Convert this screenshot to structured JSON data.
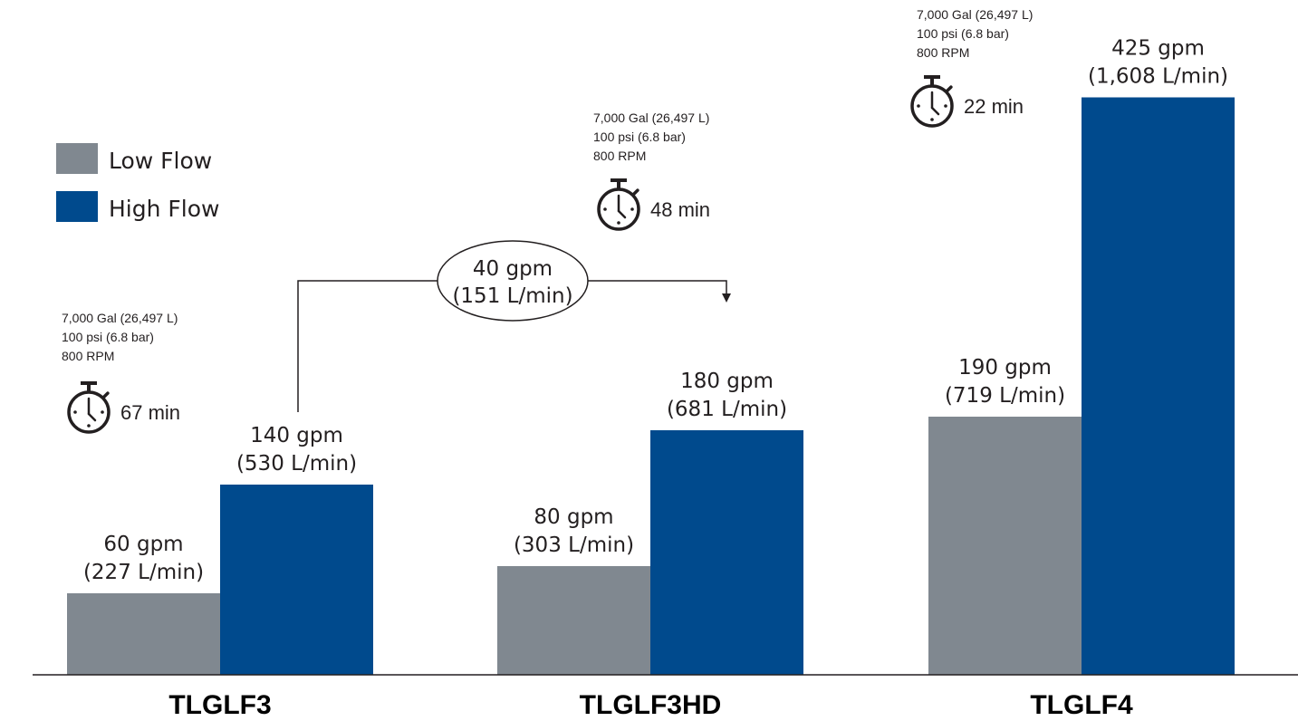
{
  "chart_data": {
    "type": "bar",
    "categories": [
      "TLGLF3",
      "TLGLF3HD",
      "TLGLF4"
    ],
    "series": [
      {
        "name": "Low Flow",
        "color": "#808890",
        "values": [
          60,
          80,
          190
        ],
        "labels": [
          [
            "60 gpm",
            "(227 L/min)"
          ],
          [
            "80 gpm",
            "(303 L/min)"
          ],
          [
            "190 gpm",
            "(719 L/min)"
          ]
        ]
      },
      {
        "name": "High Flow",
        "color": "#004a8d",
        "values": [
          140,
          180,
          425
        ],
        "labels": [
          [
            "140 gpm",
            "(530 L/min)"
          ],
          [
            "180 gpm",
            "(681 L/min)"
          ],
          [
            "425 gpm",
            "(1,608 L/min)"
          ]
        ]
      }
    ],
    "ylim": [
      0,
      470
    ],
    "legend": "top-left",
    "grid": false,
    "specs": [
      {
        "lines": [
          "7,000 Gal (26,497 L)",
          "100 psi (6.8 bar)",
          "800 RPM"
        ],
        "time": "67 min"
      },
      {
        "lines": [
          "7,000 Gal (26,497 L)",
          "100 psi (6.8 bar)",
          "800 RPM"
        ],
        "time": "48 min"
      },
      {
        "lines": [
          "7,000 Gal (26,497 L)",
          "100 psi (6.8 bar)",
          "800 RPM"
        ],
        "time": "22 min"
      }
    ],
    "annotation": {
      "lines": [
        "40 gpm",
        "(151 L/min)"
      ],
      "from": "TLGLF3",
      "to": "TLGLF3HD"
    }
  }
}
